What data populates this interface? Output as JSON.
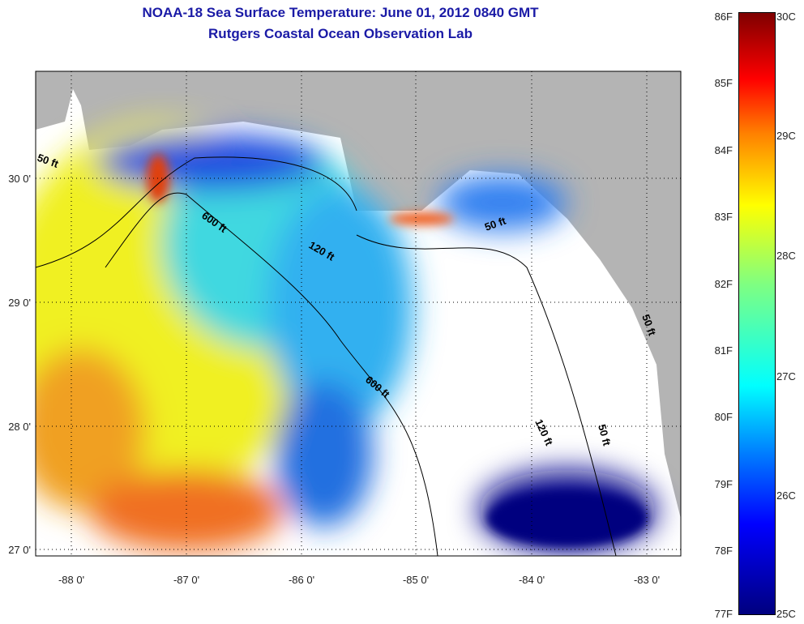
{
  "title": {
    "line1": "NOAA-18 Sea Surface Temperature:  June 01, 2012 0840 GMT",
    "line2": "Rutgers Coastal Ocean Observation Lab"
  },
  "map": {
    "lat_ticks": [
      "30 0'",
      "29 0'",
      "28 0'",
      "27 0'"
    ],
    "lon_ticks": [
      "-88 0'",
      "-87 0'",
      "-86 0'",
      "-85 0'",
      "-84 0'",
      "-83 0'"
    ],
    "contour_labels": {
      "c50a": "50 ft",
      "c600a": "600 ft",
      "c120a": "120 ft",
      "c50b": "50 ft",
      "c600b": "600 ft",
      "c120b": "120 ft",
      "c50c": "50 ft",
      "c50d": "50 ft"
    },
    "colors": {
      "land": "#b4b4b4",
      "cloud": "#ffffff"
    }
  },
  "colorbar": {
    "fahrenheit": [
      "86F",
      "85F",
      "84F",
      "83F",
      "82F",
      "81F",
      "80F",
      "79F",
      "78F",
      "77F"
    ],
    "celsius": [
      "30C",
      "29C",
      "28C",
      "27C",
      "26C",
      "25C"
    ],
    "range_f": [
      77,
      86
    ],
    "range_c": [
      25,
      30
    ]
  }
}
